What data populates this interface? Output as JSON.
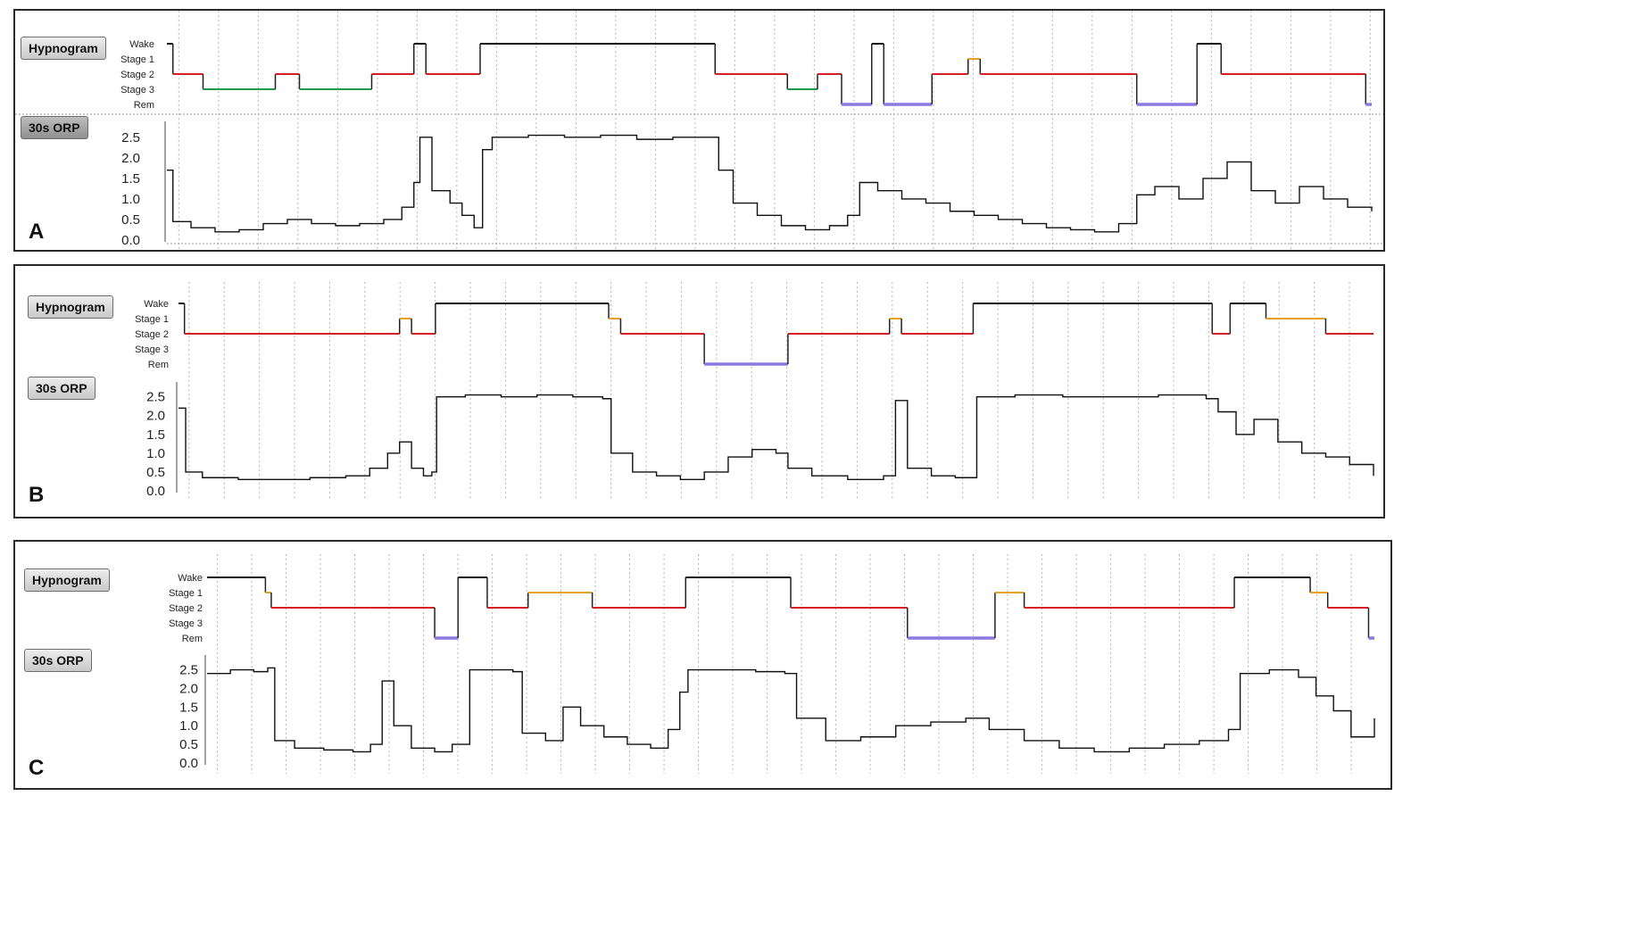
{
  "hypnogram_stage_labels": [
    "Wake",
    "Stage 1",
    "Stage 2",
    "Stage 3",
    "Rem"
  ],
  "stage_colors": {
    "Wake": "#111111",
    "Stage 1": "#e8a020",
    "Stage 2": "#d42020",
    "Stage 3": "#1f9a4a",
    "Rem": "#8c78e0"
  },
  "orp_line_color": "#111111",
  "panels": [
    {
      "letter": "A",
      "hypnogram_label": "Hypnogram",
      "orp_label": "30s ORP"
    },
    {
      "letter": "B",
      "hypnogram_label": "Hypnogram",
      "orp_label": "30s ORP"
    },
    {
      "letter": "C",
      "hypnogram_label": "Hypnogram",
      "orp_label": "30s ORP"
    }
  ],
  "chart_data": [
    {
      "panel": "A",
      "type": "line",
      "xlim": [
        0,
        1000
      ],
      "hypnogram": {
        "stages": [
          "Wake",
          "Stage 1",
          "Stage 2",
          "Stage 3",
          "Rem"
        ],
        "segments": [
          {
            "start": 0,
            "end": 5,
            "stage": "Wake"
          },
          {
            "start": 5,
            "end": 30,
            "stage": "Stage 2"
          },
          {
            "start": 30,
            "end": 90,
            "stage": "Stage 3"
          },
          {
            "start": 90,
            "end": 110,
            "stage": "Stage 2"
          },
          {
            "start": 110,
            "end": 170,
            "stage": "Stage 3"
          },
          {
            "start": 170,
            "end": 205,
            "stage": "Stage 2"
          },
          {
            "start": 205,
            "end": 215,
            "stage": "Wake"
          },
          {
            "start": 215,
            "end": 260,
            "stage": "Stage 2"
          },
          {
            "start": 260,
            "end": 455,
            "stage": "Wake"
          },
          {
            "start": 455,
            "end": 480,
            "stage": "Stage 2"
          },
          {
            "start": 480,
            "end": 515,
            "stage": "Stage 2"
          },
          {
            "start": 515,
            "end": 540,
            "stage": "Stage 3"
          },
          {
            "start": 540,
            "end": 560,
            "stage": "Stage 2"
          },
          {
            "start": 560,
            "end": 585,
            "stage": "Rem"
          },
          {
            "start": 585,
            "end": 595,
            "stage": "Wake"
          },
          {
            "start": 595,
            "end": 635,
            "stage": "Rem"
          },
          {
            "start": 635,
            "end": 665,
            "stage": "Stage 2"
          },
          {
            "start": 665,
            "end": 675,
            "stage": "Stage 1"
          },
          {
            "start": 675,
            "end": 805,
            "stage": "Stage 2"
          },
          {
            "start": 805,
            "end": 855,
            "stage": "Rem"
          },
          {
            "start": 855,
            "end": 875,
            "stage": "Wake"
          },
          {
            "start": 875,
            "end": 995,
            "stage": "Stage 2"
          },
          {
            "start": 995,
            "end": 1000,
            "stage": "Rem"
          }
        ]
      },
      "orp": {
        "yticks": [
          0.0,
          0.5,
          1.0,
          1.5,
          2.0,
          2.5
        ],
        "ylim": [
          0,
          2.8
        ],
        "points": [
          [
            0,
            1.7
          ],
          [
            5,
            0.45
          ],
          [
            20,
            0.3
          ],
          [
            40,
            0.2
          ],
          [
            60,
            0.25
          ],
          [
            80,
            0.4
          ],
          [
            100,
            0.5
          ],
          [
            120,
            0.4
          ],
          [
            140,
            0.35
          ],
          [
            160,
            0.4
          ],
          [
            180,
            0.5
          ],
          [
            195,
            0.8
          ],
          [
            205,
            1.4
          ],
          [
            210,
            2.5
          ],
          [
            220,
            1.2
          ],
          [
            235,
            0.9
          ],
          [
            245,
            0.6
          ],
          [
            255,
            0.3
          ],
          [
            262,
            2.2
          ],
          [
            270,
            2.5
          ],
          [
            300,
            2.55
          ],
          [
            330,
            2.5
          ],
          [
            360,
            2.55
          ],
          [
            390,
            2.45
          ],
          [
            420,
            2.5
          ],
          [
            450,
            2.5
          ],
          [
            458,
            1.7
          ],
          [
            470,
            0.9
          ],
          [
            490,
            0.6
          ],
          [
            510,
            0.35
          ],
          [
            530,
            0.25
          ],
          [
            550,
            0.35
          ],
          [
            565,
            0.6
          ],
          [
            575,
            1.4
          ],
          [
            590,
            1.2
          ],
          [
            610,
            1.0
          ],
          [
            630,
            0.9
          ],
          [
            650,
            0.7
          ],
          [
            670,
            0.6
          ],
          [
            690,
            0.5
          ],
          [
            710,
            0.4
          ],
          [
            730,
            0.3
          ],
          [
            750,
            0.25
          ],
          [
            770,
            0.2
          ],
          [
            790,
            0.4
          ],
          [
            805,
            1.1
          ],
          [
            820,
            1.3
          ],
          [
            840,
            1.0
          ],
          [
            860,
            1.5
          ],
          [
            880,
            1.9
          ],
          [
            900,
            1.2
          ],
          [
            920,
            0.9
          ],
          [
            940,
            1.3
          ],
          [
            960,
            1.0
          ],
          [
            980,
            0.8
          ],
          [
            1000,
            0.7
          ]
        ]
      }
    },
    {
      "panel": "B",
      "type": "line",
      "xlim": [
        0,
        1000
      ],
      "hypnogram": {
        "stages": [
          "Wake",
          "Stage 1",
          "Stage 2",
          "Stage 3",
          "Rem"
        ],
        "segments": [
          {
            "start": 0,
            "end": 5,
            "stage": "Wake"
          },
          {
            "start": 5,
            "end": 185,
            "stage": "Stage 2"
          },
          {
            "start": 185,
            "end": 195,
            "stage": "Stage 1"
          },
          {
            "start": 195,
            "end": 215,
            "stage": "Stage 2"
          },
          {
            "start": 215,
            "end": 360,
            "stage": "Wake"
          },
          {
            "start": 360,
            "end": 370,
            "stage": "Stage 1"
          },
          {
            "start": 370,
            "end": 440,
            "stage": "Stage 2"
          },
          {
            "start": 440,
            "end": 510,
            "stage": "Rem"
          },
          {
            "start": 510,
            "end": 595,
            "stage": "Stage 2"
          },
          {
            "start": 595,
            "end": 605,
            "stage": "Stage 1"
          },
          {
            "start": 605,
            "end": 665,
            "stage": "Stage 2"
          },
          {
            "start": 665,
            "end": 865,
            "stage": "Wake"
          },
          {
            "start": 865,
            "end": 880,
            "stage": "Stage 2"
          },
          {
            "start": 880,
            "end": 910,
            "stage": "Wake"
          },
          {
            "start": 910,
            "end": 960,
            "stage": "Stage 1"
          },
          {
            "start": 960,
            "end": 1000,
            "stage": "Stage 2"
          }
        ]
      },
      "orp": {
        "yticks": [
          0.0,
          0.5,
          1.0,
          1.5,
          2.0,
          2.5
        ],
        "ylim": [
          0,
          2.8
        ],
        "points": [
          [
            0,
            2.2
          ],
          [
            6,
            0.5
          ],
          [
            20,
            0.35
          ],
          [
            50,
            0.3
          ],
          [
            80,
            0.3
          ],
          [
            110,
            0.35
          ],
          [
            140,
            0.4
          ],
          [
            160,
            0.6
          ],
          [
            175,
            1.0
          ],
          [
            185,
            1.3
          ],
          [
            195,
            0.6
          ],
          [
            205,
            0.4
          ],
          [
            212,
            0.5
          ],
          [
            216,
            2.5
          ],
          [
            240,
            2.55
          ],
          [
            270,
            2.5
          ],
          [
            300,
            2.55
          ],
          [
            330,
            2.5
          ],
          [
            355,
            2.45
          ],
          [
            362,
            1.0
          ],
          [
            380,
            0.5
          ],
          [
            400,
            0.4
          ],
          [
            420,
            0.3
          ],
          [
            440,
            0.5
          ],
          [
            460,
            0.9
          ],
          [
            480,
            1.1
          ],
          [
            500,
            1.0
          ],
          [
            510,
            0.6
          ],
          [
            530,
            0.4
          ],
          [
            560,
            0.3
          ],
          [
            590,
            0.4
          ],
          [
            600,
            2.4
          ],
          [
            610,
            0.6
          ],
          [
            630,
            0.4
          ],
          [
            650,
            0.35
          ],
          [
            668,
            2.5
          ],
          [
            700,
            2.55
          ],
          [
            740,
            2.5
          ],
          [
            780,
            2.5
          ],
          [
            820,
            2.55
          ],
          [
            860,
            2.45
          ],
          [
            870,
            2.1
          ],
          [
            885,
            1.5
          ],
          [
            900,
            1.9
          ],
          [
            920,
            1.3
          ],
          [
            940,
            1.0
          ],
          [
            960,
            0.9
          ],
          [
            980,
            0.7
          ],
          [
            1000,
            0.4
          ]
        ]
      }
    },
    {
      "panel": "C",
      "type": "line",
      "xlim": [
        0,
        1000
      ],
      "hypnogram": {
        "stages": [
          "Wake",
          "Stage 1",
          "Stage 2",
          "Stage 3",
          "Rem"
        ],
        "segments": [
          {
            "start": 0,
            "end": 50,
            "stage": "Wake"
          },
          {
            "start": 50,
            "end": 55,
            "stage": "Stage 1"
          },
          {
            "start": 55,
            "end": 140,
            "stage": "Stage 2"
          },
          {
            "start": 140,
            "end": 195,
            "stage": "Stage 2"
          },
          {
            "start": 195,
            "end": 215,
            "stage": "Rem"
          },
          {
            "start": 215,
            "end": 240,
            "stage": "Wake"
          },
          {
            "start": 240,
            "end": 275,
            "stage": "Stage 2"
          },
          {
            "start": 275,
            "end": 330,
            "stage": "Stage 1"
          },
          {
            "start": 330,
            "end": 410,
            "stage": "Stage 2"
          },
          {
            "start": 410,
            "end": 500,
            "stage": "Wake"
          },
          {
            "start": 500,
            "end": 600,
            "stage": "Stage 2"
          },
          {
            "start": 600,
            "end": 655,
            "stage": "Rem"
          },
          {
            "start": 655,
            "end": 675,
            "stage": "Rem"
          },
          {
            "start": 675,
            "end": 700,
            "stage": "Stage 1"
          },
          {
            "start": 700,
            "end": 880,
            "stage": "Stage 2"
          },
          {
            "start": 880,
            "end": 945,
            "stage": "Wake"
          },
          {
            "start": 945,
            "end": 960,
            "stage": "Stage 1"
          },
          {
            "start": 960,
            "end": 995,
            "stage": "Stage 2"
          },
          {
            "start": 995,
            "end": 1000,
            "stage": "Rem"
          }
        ]
      },
      "orp": {
        "yticks": [
          0.0,
          0.5,
          1.0,
          1.5,
          2.0,
          2.5
        ],
        "ylim": [
          0,
          2.8
        ],
        "points": [
          [
            0,
            2.4
          ],
          [
            20,
            2.5
          ],
          [
            40,
            2.45
          ],
          [
            52,
            2.55
          ],
          [
            58,
            0.6
          ],
          [
            75,
            0.4
          ],
          [
            100,
            0.35
          ],
          [
            125,
            0.3
          ],
          [
            140,
            0.5
          ],
          [
            150,
            2.2
          ],
          [
            160,
            1.0
          ],
          [
            175,
            0.4
          ],
          [
            195,
            0.3
          ],
          [
            210,
            0.5
          ],
          [
            225,
            2.5
          ],
          [
            245,
            2.5
          ],
          [
            262,
            2.45
          ],
          [
            270,
            0.8
          ],
          [
            290,
            0.6
          ],
          [
            305,
            1.5
          ],
          [
            320,
            1.0
          ],
          [
            340,
            0.7
          ],
          [
            360,
            0.5
          ],
          [
            380,
            0.4
          ],
          [
            395,
            0.9
          ],
          [
            405,
            1.9
          ],
          [
            412,
            2.5
          ],
          [
            440,
            2.5
          ],
          [
            470,
            2.45
          ],
          [
            495,
            2.4
          ],
          [
            505,
            1.2
          ],
          [
            530,
            0.6
          ],
          [
            560,
            0.7
          ],
          [
            590,
            1.0
          ],
          [
            620,
            1.1
          ],
          [
            650,
            1.2
          ],
          [
            670,
            0.9
          ],
          [
            700,
            0.6
          ],
          [
            730,
            0.4
          ],
          [
            760,
            0.3
          ],
          [
            790,
            0.4
          ],
          [
            820,
            0.5
          ],
          [
            850,
            0.6
          ],
          [
            875,
            0.9
          ],
          [
            885,
            2.4
          ],
          [
            910,
            2.5
          ],
          [
            935,
            2.3
          ],
          [
            950,
            1.8
          ],
          [
            965,
            1.4
          ],
          [
            980,
            0.7
          ],
          [
            1000,
            1.2
          ]
        ]
      }
    }
  ]
}
